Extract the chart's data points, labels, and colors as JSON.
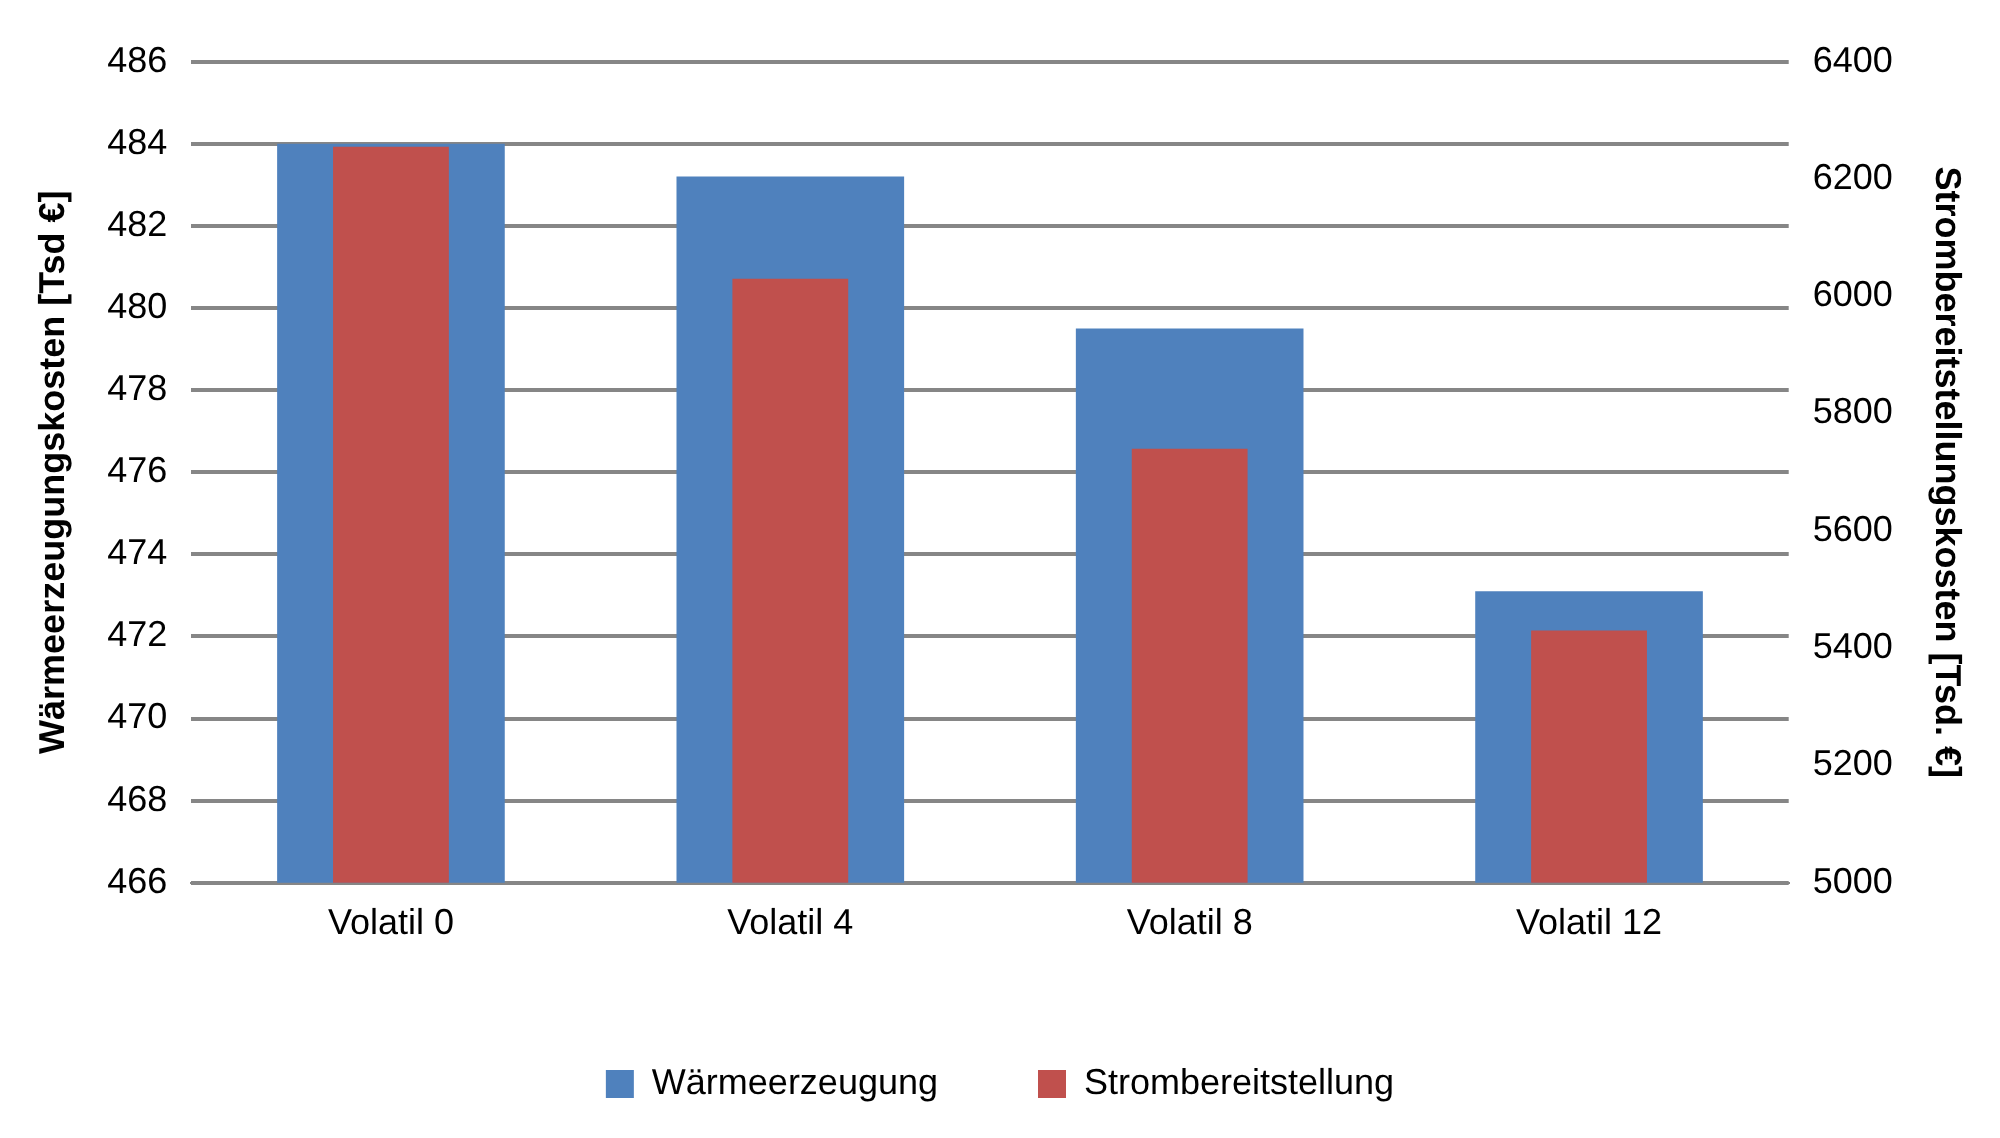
{
  "chart_data": {
    "type": "bar",
    "categories": [
      "Volatil 0",
      "Volatil 4",
      "Volatil 8",
      "Volatil 12"
    ],
    "series": [
      {
        "name": "Wärmeerzeugung",
        "color": "#4f81bd",
        "values": [
          484.0,
          483.2,
          479.5,
          473.1
        ]
      },
      {
        "name": "Strombereitstellung",
        "color": "#c0504d",
        "values": [
          6255,
          6030,
          5740,
          5430
        ],
        "axis": "y2"
      }
    ],
    "ylabel": "Wärmeerzeugungskosten [Tsd €]",
    "y2label": "Strombereitstellungskosten [Tsd. €]",
    "ylim": [
      466,
      486
    ],
    "yticks": [
      466,
      468,
      470,
      472,
      474,
      476,
      478,
      480,
      482,
      484,
      486
    ],
    "y2lim": [
      5000,
      6400
    ],
    "y2ticks": [
      5000,
      5200,
      5400,
      5600,
      5800,
      6000,
      6200,
      6400
    ],
    "grid": "y",
    "legend": "bottom"
  }
}
